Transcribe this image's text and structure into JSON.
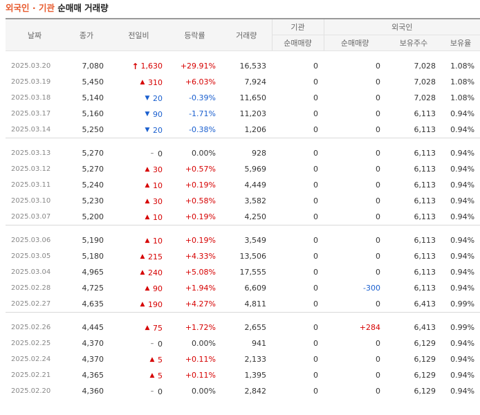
{
  "title": {
    "part1": "외국인 · 기관",
    "part2": "순매매 거래량"
  },
  "headers": {
    "date": "날짜",
    "close": "종가",
    "change": "전일비",
    "rate": "등락률",
    "volume": "거래량",
    "institution": "기관",
    "foreign": "외국인",
    "inst_net": "순매매량",
    "foreign_net": "순매매량",
    "foreign_shares": "보유주수",
    "foreign_ratio": "보유율"
  },
  "colors": {
    "up": "#d60000",
    "down": "#1a5fcf",
    "accent": "#e85a2d"
  },
  "groups": [
    [
      {
        "date": "2025.03.20",
        "close": "7,080",
        "dir": "upper",
        "change": "1,630",
        "rate": "+29.91%",
        "volume": "16,533",
        "inst": "0",
        "foreign_net": "0",
        "shares": "7,028",
        "ratio": "1.08%"
      },
      {
        "date": "2025.03.19",
        "close": "5,450",
        "dir": "up",
        "change": "310",
        "rate": "+6.03%",
        "volume": "7,924",
        "inst": "0",
        "foreign_net": "0",
        "shares": "7,028",
        "ratio": "1.08%"
      },
      {
        "date": "2025.03.18",
        "close": "5,140",
        "dir": "down",
        "change": "20",
        "rate": "-0.39%",
        "volume": "11,650",
        "inst": "0",
        "foreign_net": "0",
        "shares": "7,028",
        "ratio": "1.08%"
      },
      {
        "date": "2025.03.17",
        "close": "5,160",
        "dir": "down",
        "change": "90",
        "rate": "-1.71%",
        "volume": "11,203",
        "inst": "0",
        "foreign_net": "0",
        "shares": "6,113",
        "ratio": "0.94%"
      },
      {
        "date": "2025.03.14",
        "close": "5,250",
        "dir": "down",
        "change": "20",
        "rate": "-0.38%",
        "volume": "1,206",
        "inst": "0",
        "foreign_net": "0",
        "shares": "6,113",
        "ratio": "0.94%"
      }
    ],
    [
      {
        "date": "2025.03.13",
        "close": "5,270",
        "dir": "flat",
        "change": "0",
        "rate": "0.00%",
        "volume": "928",
        "inst": "0",
        "foreign_net": "0",
        "shares": "6,113",
        "ratio": "0.94%"
      },
      {
        "date": "2025.03.12",
        "close": "5,270",
        "dir": "up",
        "change": "30",
        "rate": "+0.57%",
        "volume": "5,969",
        "inst": "0",
        "foreign_net": "0",
        "shares": "6,113",
        "ratio": "0.94%"
      },
      {
        "date": "2025.03.11",
        "close": "5,240",
        "dir": "up",
        "change": "10",
        "rate": "+0.19%",
        "volume": "4,449",
        "inst": "0",
        "foreign_net": "0",
        "shares": "6,113",
        "ratio": "0.94%"
      },
      {
        "date": "2025.03.10",
        "close": "5,230",
        "dir": "up",
        "change": "30",
        "rate": "+0.58%",
        "volume": "3,582",
        "inst": "0",
        "foreign_net": "0",
        "shares": "6,113",
        "ratio": "0.94%"
      },
      {
        "date": "2025.03.07",
        "close": "5,200",
        "dir": "up",
        "change": "10",
        "rate": "+0.19%",
        "volume": "4,250",
        "inst": "0",
        "foreign_net": "0",
        "shares": "6,113",
        "ratio": "0.94%"
      }
    ],
    [
      {
        "date": "2025.03.06",
        "close": "5,190",
        "dir": "up",
        "change": "10",
        "rate": "+0.19%",
        "volume": "3,549",
        "inst": "0",
        "foreign_net": "0",
        "shares": "6,113",
        "ratio": "0.94%"
      },
      {
        "date": "2025.03.05",
        "close": "5,180",
        "dir": "up",
        "change": "215",
        "rate": "+4.33%",
        "volume": "13,506",
        "inst": "0",
        "foreign_net": "0",
        "shares": "6,113",
        "ratio": "0.94%"
      },
      {
        "date": "2025.03.04",
        "close": "4,965",
        "dir": "up",
        "change": "240",
        "rate": "+5.08%",
        "volume": "17,555",
        "inst": "0",
        "foreign_net": "0",
        "shares": "6,113",
        "ratio": "0.94%"
      },
      {
        "date": "2025.02.28",
        "close": "4,725",
        "dir": "up",
        "change": "90",
        "rate": "+1.94%",
        "volume": "6,609",
        "inst": "0",
        "foreign_net": "-300",
        "shares": "6,113",
        "ratio": "0.94%"
      },
      {
        "date": "2025.02.27",
        "close": "4,635",
        "dir": "up",
        "change": "190",
        "rate": "+4.27%",
        "volume": "4,811",
        "inst": "0",
        "foreign_net": "0",
        "shares": "6,413",
        "ratio": "0.99%"
      }
    ],
    [
      {
        "date": "2025.02.26",
        "close": "4,445",
        "dir": "up",
        "change": "75",
        "rate": "+1.72%",
        "volume": "2,655",
        "inst": "0",
        "foreign_net": "+284",
        "shares": "6,413",
        "ratio": "0.99%"
      },
      {
        "date": "2025.02.25",
        "close": "4,370",
        "dir": "flat",
        "change": "0",
        "rate": "0.00%",
        "volume": "941",
        "inst": "0",
        "foreign_net": "0",
        "shares": "6,129",
        "ratio": "0.94%"
      },
      {
        "date": "2025.02.24",
        "close": "4,370",
        "dir": "up",
        "change": "5",
        "rate": "+0.11%",
        "volume": "2,133",
        "inst": "0",
        "foreign_net": "0",
        "shares": "6,129",
        "ratio": "0.94%"
      },
      {
        "date": "2025.02.21",
        "close": "4,365",
        "dir": "up",
        "change": "5",
        "rate": "+0.11%",
        "volume": "1,395",
        "inst": "0",
        "foreign_net": "0",
        "shares": "6,129",
        "ratio": "0.94%"
      },
      {
        "date": "2025.02.20",
        "close": "4,360",
        "dir": "flat",
        "change": "0",
        "rate": "0.00%",
        "volume": "2,842",
        "inst": "0",
        "foreign_net": "0",
        "shares": "6,129",
        "ratio": "0.94%"
      }
    ]
  ]
}
